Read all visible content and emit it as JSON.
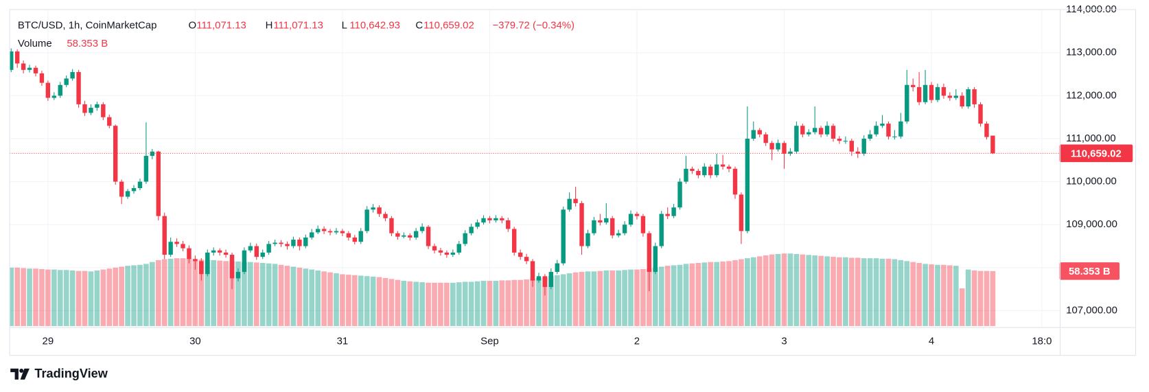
{
  "chart_data": {
    "type": "candlestick",
    "title": "BTC/USD, 1h, CoinMarketCap",
    "ohlc_legend": [
      {
        "label": "O",
        "value": "111,071.13"
      },
      {
        "label": "H",
        "value": "111,071.13"
      },
      {
        "label": "L",
        "value": "110,642.93"
      },
      {
        "label": "C",
        "value": "110,659.02"
      }
    ],
    "change_label": "−379.72 (−0.34%)",
    "last_price_label": "110,659.02",
    "up_color": "#089981",
    "down_color": "#f23645",
    "grid": true,
    "ylim": [
      106640,
      114000
    ],
    "yticks": [
      {
        "value": 107000,
        "label": "107,000.00"
      },
      {
        "value": 108000,
        "label": "108,000.00"
      },
      {
        "value": 109000,
        "label": "109,000.00"
      },
      {
        "value": 110000,
        "label": "110,000.00"
      },
      {
        "value": 111000,
        "label": "111,000.00"
      },
      {
        "value": 112000,
        "label": "112,000.00"
      },
      {
        "value": 113000,
        "label": "113,000.00"
      },
      {
        "value": 114000,
        "label": "114,000.00"
      }
    ],
    "categories": [
      null,
      null,
      null,
      null,
      null,
      null,
      "29",
      null,
      null,
      null,
      null,
      null,
      null,
      null,
      null,
      null,
      null,
      null,
      null,
      null,
      null,
      null,
      null,
      null,
      null,
      null,
      null,
      null,
      null,
      null,
      "30",
      null,
      null,
      null,
      null,
      null,
      null,
      null,
      null,
      null,
      null,
      null,
      null,
      null,
      null,
      null,
      null,
      null,
      null,
      null,
      null,
      null,
      null,
      null,
      "31",
      null,
      null,
      null,
      null,
      null,
      null,
      null,
      null,
      null,
      null,
      null,
      null,
      null,
      null,
      null,
      null,
      null,
      null,
      null,
      null,
      null,
      null,
      null,
      "Sep",
      null,
      null,
      null,
      null,
      null,
      null,
      null,
      null,
      null,
      null,
      null,
      null,
      null,
      null,
      null,
      null,
      null,
      null,
      null,
      null,
      null,
      null,
      null,
      "2",
      null,
      null,
      null,
      null,
      null,
      null,
      null,
      null,
      null,
      null,
      null,
      null,
      null,
      null,
      null,
      null,
      null,
      null,
      null,
      null,
      null,
      null,
      null,
      "3",
      null,
      null,
      null,
      null,
      null,
      null,
      null,
      null,
      null,
      null,
      null,
      null,
      null,
      null,
      null,
      null,
      null,
      null,
      null,
      null,
      null,
      null,
      null,
      "4",
      null,
      null,
      null,
      null,
      null,
      null,
      null,
      null,
      null,
      null,
      null,
      null,
      null,
      null,
      null,
      null,
      null,
      "18:0"
    ],
    "candles": [
      [
        112600,
        113100,
        112550,
        113030
      ],
      [
        113030,
        113080,
        112650,
        112750
      ],
      [
        112750,
        112820,
        112520,
        112600
      ],
      [
        112600,
        112720,
        112540,
        112650
      ],
      [
        112650,
        112700,
        112450,
        112520
      ],
      [
        112520,
        112580,
        112230,
        112300
      ],
      [
        112300,
        112350,
        111880,
        111950
      ],
      [
        111950,
        112080,
        111900,
        112000
      ],
      [
        112000,
        112320,
        111950,
        112250
      ],
      [
        112250,
        112470,
        112200,
        112400
      ],
      [
        112400,
        112620,
        112350,
        112550
      ],
      [
        112550,
        112600,
        111720,
        111800
      ],
      [
        111800,
        111880,
        111530,
        111600
      ],
      [
        111600,
        111800,
        111550,
        111720
      ],
      [
        111720,
        111860,
        111650,
        111800
      ],
      [
        111800,
        111850,
        111430,
        111500
      ],
      [
        111500,
        111560,
        111240,
        111300
      ],
      [
        111300,
        111330,
        109930,
        110000
      ],
      [
        110000,
        110050,
        109480,
        109650
      ],
      [
        109650,
        109830,
        109600,
        109780
      ],
      [
        109780,
        109920,
        109720,
        109850
      ],
      [
        109850,
        110070,
        109800,
        110000
      ],
      [
        110000,
        111380,
        109950,
        110600
      ],
      [
        110600,
        110760,
        110520,
        110700
      ],
      [
        110700,
        110720,
        109100,
        109200
      ],
      [
        109200,
        109280,
        108200,
        108300
      ],
      [
        108300,
        108700,
        108250,
        108600
      ],
      [
        108600,
        108680,
        108480,
        108550
      ],
      [
        108550,
        108620,
        108380,
        108450
      ],
      [
        108450,
        108520,
        108100,
        108200
      ],
      [
        108200,
        108280,
        107950,
        108150
      ],
      [
        108150,
        108220,
        107700,
        107850
      ],
      [
        107850,
        108420,
        107800,
        108350
      ],
      [
        108350,
        108470,
        108280,
        108400
      ],
      [
        108400,
        108450,
        108280,
        108350
      ],
      [
        108350,
        108420,
        108230,
        108300
      ],
      [
        108300,
        108350,
        107500,
        107750
      ],
      [
        107750,
        107980,
        107680,
        107900
      ],
      [
        107900,
        108470,
        107850,
        108400
      ],
      [
        108400,
        108580,
        108350,
        108500
      ],
      [
        108500,
        108560,
        108180,
        108250
      ],
      [
        108250,
        108420,
        108200,
        108350
      ],
      [
        108350,
        108620,
        108300,
        108550
      ],
      [
        108550,
        108650,
        108500,
        108580
      ],
      [
        108580,
        108640,
        108480,
        108550
      ],
      [
        108550,
        108610,
        108420,
        108500
      ],
      [
        108500,
        108720,
        108450,
        108650
      ],
      [
        108650,
        108700,
        108400,
        108500
      ],
      [
        108500,
        108770,
        108450,
        108700
      ],
      [
        108700,
        108900,
        108650,
        108820
      ],
      [
        108820,
        108980,
        108780,
        108900
      ],
      [
        108900,
        108960,
        108780,
        108850
      ],
      [
        108850,
        108900,
        108750,
        108820
      ],
      [
        108820,
        108920,
        108770,
        108850
      ],
      [
        108850,
        108900,
        108730,
        108800
      ],
      [
        108800,
        108850,
        108630,
        108700
      ],
      [
        108700,
        108760,
        108540,
        108600
      ],
      [
        108600,
        108920,
        108550,
        108850
      ],
      [
        108850,
        109430,
        108800,
        109350
      ],
      [
        109350,
        109480,
        109280,
        109400
      ],
      [
        109400,
        109450,
        109180,
        109250
      ],
      [
        109250,
        109300,
        109080,
        109150
      ],
      [
        109150,
        109200,
        108730,
        108800
      ],
      [
        108800,
        108850,
        108650,
        108720
      ],
      [
        108720,
        108820,
        108680,
        108750
      ],
      [
        108750,
        108800,
        108630,
        108700
      ],
      [
        108700,
        108920,
        108650,
        108850
      ],
      [
        108850,
        109030,
        108800,
        108950
      ],
      [
        108950,
        108990,
        108430,
        108500
      ],
      [
        108500,
        108560,
        108330,
        108400
      ],
      [
        108400,
        108460,
        108280,
        108350
      ],
      [
        108350,
        108400,
        108230,
        108300
      ],
      [
        108300,
        108420,
        108250,
        108350
      ],
      [
        108350,
        108620,
        108300,
        108550
      ],
      [
        108550,
        108870,
        108500,
        108800
      ],
      [
        108800,
        109020,
        108750,
        108950
      ],
      [
        108950,
        109120,
        108900,
        109050
      ],
      [
        109050,
        109220,
        109000,
        109150
      ],
      [
        109150,
        109200,
        109030,
        109100
      ],
      [
        109100,
        109220,
        109050,
        109150
      ],
      [
        109150,
        109200,
        109030,
        109100
      ],
      [
        109100,
        109160,
        108830,
        108900
      ],
      [
        108900,
        108950,
        108280,
        108350
      ],
      [
        108350,
        108420,
        108180,
        108250
      ],
      [
        108250,
        108320,
        108080,
        108150
      ],
      [
        108150,
        108200,
        107550,
        107700
      ],
      [
        107700,
        107880,
        107650,
        107800
      ],
      [
        107800,
        107850,
        107350,
        107550
      ],
      [
        107550,
        107980,
        107500,
        107900
      ],
      [
        107900,
        108180,
        107850,
        108100
      ],
      [
        108100,
        109420,
        108050,
        109350
      ],
      [
        109350,
        109750,
        109300,
        109600
      ],
      [
        109600,
        109880,
        109420,
        109500
      ],
      [
        109500,
        109550,
        108300,
        108500
      ],
      [
        108500,
        108880,
        108450,
        108800
      ],
      [
        108800,
        109180,
        108750,
        109100
      ],
      [
        109100,
        109250,
        108980,
        109050
      ],
      [
        109050,
        109500,
        109000,
        109150
      ],
      [
        109150,
        109200,
        108680,
        108750
      ],
      [
        108750,
        108880,
        108700,
        108800
      ],
      [
        108800,
        109080,
        108750,
        109000
      ],
      [
        109000,
        109330,
        108950,
        109250
      ],
      [
        109250,
        109300,
        109120,
        109200
      ],
      [
        109200,
        109250,
        108720,
        108800
      ],
      [
        108800,
        108850,
        107450,
        107900
      ],
      [
        107900,
        108580,
        107850,
        108500
      ],
      [
        108500,
        109320,
        108450,
        109250
      ],
      [
        109250,
        109400,
        109130,
        109200
      ],
      [
        109200,
        109480,
        109150,
        109400
      ],
      [
        109400,
        110080,
        109350,
        110000
      ],
      [
        110000,
        110600,
        109950,
        110300
      ],
      [
        110300,
        110350,
        110180,
        110250
      ],
      [
        110250,
        110300,
        110080,
        110150
      ],
      [
        110150,
        110430,
        110100,
        110350
      ],
      [
        110350,
        110400,
        110080,
        110150
      ],
      [
        110150,
        110650,
        110100,
        110400
      ],
      [
        110400,
        110620,
        110280,
        110350
      ],
      [
        110350,
        110400,
        110220,
        110300
      ],
      [
        110300,
        110350,
        109600,
        109700
      ],
      [
        109700,
        109750,
        108550,
        108850
      ],
      [
        108850,
        111750,
        108800,
        111000
      ],
      [
        111000,
        111400,
        110950,
        111200
      ],
      [
        111200,
        111250,
        111030,
        111100
      ],
      [
        111100,
        111150,
        110830,
        110900
      ],
      [
        110900,
        110950,
        110500,
        110750
      ],
      [
        110750,
        110980,
        110700,
        110900
      ],
      [
        110900,
        110950,
        110300,
        110650
      ],
      [
        110650,
        110780,
        110600,
        110700
      ],
      [
        110700,
        111400,
        110650,
        111300
      ],
      [
        111300,
        111350,
        111030,
        111100
      ],
      [
        111100,
        111220,
        111050,
        111150
      ],
      [
        111150,
        111750,
        111100,
        111250
      ],
      [
        111250,
        111300,
        111030,
        111100
      ],
      [
        111100,
        111400,
        111050,
        111300
      ],
      [
        111300,
        111350,
        110930,
        111000
      ],
      [
        111000,
        111060,
        110880,
        110950
      ],
      [
        110950,
        111050,
        110880,
        110950
      ],
      [
        110950,
        111000,
        110600,
        110700
      ],
      [
        110700,
        110800,
        110550,
        110650
      ],
      [
        110650,
        111080,
        110600,
        111000
      ],
      [
        111000,
        111200,
        110950,
        111100
      ],
      [
        111100,
        111400,
        111050,
        111300
      ],
      [
        111300,
        111550,
        111250,
        111350
      ],
      [
        111350,
        111400,
        110980,
        111050
      ],
      [
        111050,
        111200,
        110980,
        111050
      ],
      [
        111050,
        111600,
        111000,
        111400
      ],
      [
        111400,
        112600,
        111350,
        112250
      ],
      [
        112250,
        112400,
        112100,
        112200
      ],
      [
        112200,
        112550,
        111780,
        111850
      ],
      [
        111850,
        112600,
        111800,
        112250
      ],
      [
        112250,
        112320,
        111830,
        111900
      ],
      [
        111900,
        112280,
        111850,
        112200
      ],
      [
        112200,
        112280,
        111930,
        112000
      ],
      [
        112000,
        112080,
        111880,
        111950
      ],
      [
        111950,
        112150,
        111900,
        112000
      ],
      [
        112000,
        112080,
        111700,
        111750
      ],
      [
        111750,
        112200,
        111700,
        112150
      ],
      [
        112150,
        112200,
        111720,
        111800
      ],
      [
        111800,
        111850,
        111280,
        111350
      ],
      [
        111350,
        111400,
        110980,
        111038.74
      ],
      [
        111071.13,
        111071.13,
        110642.93,
        110659.02
      ],
      null,
      null,
      null,
      null,
      null,
      null,
      null,
      null
    ],
    "volume": {
      "name": "Volume",
      "last_label": "58.353 B",
      "values": [
        62,
        62,
        61.5,
        61,
        61,
        60.5,
        60,
        60,
        59.5,
        59.5,
        59,
        58.5,
        58.5,
        58,
        59,
        60,
        61,
        62,
        63,
        64,
        64.5,
        65,
        66,
        68,
        70,
        71,
        71.5,
        72,
        72,
        71.5,
        71,
        70.5,
        70,
        70,
        69.5,
        69,
        69,
        68.5,
        68,
        68,
        67.5,
        67,
        66.5,
        66,
        65,
        64,
        63,
        62,
        61,
        60,
        59,
        58,
        57,
        56,
        55,
        54.5,
        54,
        53.5,
        53,
        52.5,
        52,
        51,
        50,
        49,
        48,
        47.5,
        47,
        46.5,
        46,
        46,
        46,
        46,
        46,
        46.5,
        47,
        47,
        47.5,
        48,
        48,
        48,
        48.5,
        48.5,
        49,
        49,
        49.5,
        50,
        51,
        52,
        53,
        54,
        55,
        56,
        57,
        57.5,
        58,
        58,
        58.5,
        59,
        59,
        59,
        59.5,
        60,
        60,
        60.5,
        61,
        62,
        63,
        64,
        64.5,
        65,
        66,
        66.5,
        67,
        67.5,
        68,
        68,
        68.5,
        69,
        70,
        71,
        72,
        73,
        74,
        75,
        76,
        76.5,
        77,
        77,
        76.5,
        76,
        75.5,
        75,
        74.5,
        74,
        73.5,
        73,
        73,
        72.5,
        72.5,
        72,
        72,
        72,
        71.5,
        71.5,
        71,
        70,
        69,
        68,
        67,
        66,
        65.5,
        65,
        65,
        64.5,
        64,
        40,
        60,
        59,
        58.5,
        58.5,
        58.353,
        null,
        null,
        null,
        null,
        null,
        null,
        null,
        null
      ]
    },
    "branding": "TradingView"
  }
}
